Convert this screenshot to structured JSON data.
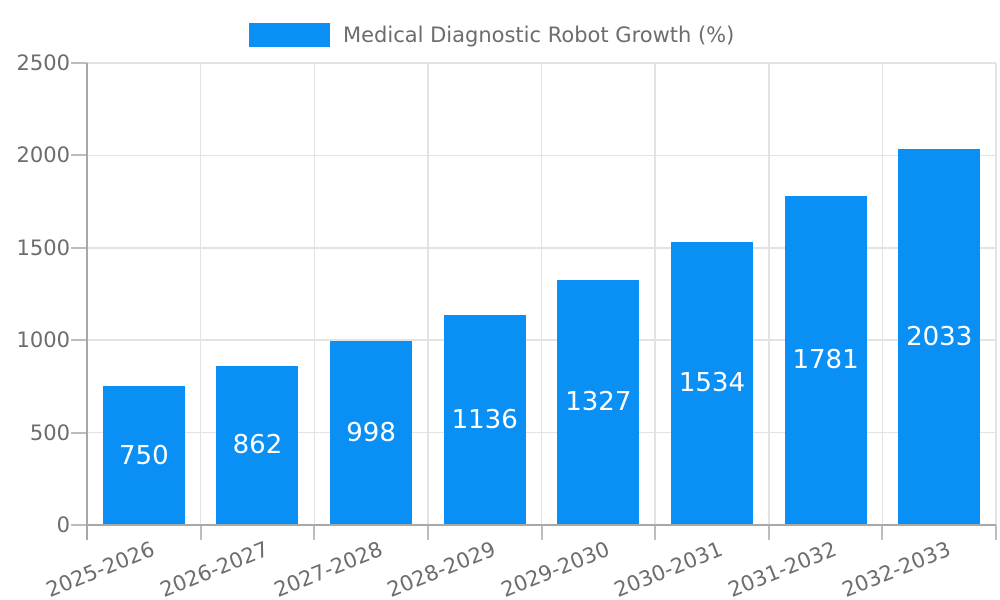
{
  "chart_data": {
    "type": "bar",
    "title": "Medical Diagnostic Robot Growth (%)",
    "legend": {
      "position": "top",
      "label": "Medical Diagnostic Robot Growth (%)"
    },
    "categories": [
      "2025-2026",
      "2026-2027",
      "2027-2028",
      "2028-2029",
      "2029-2030",
      "2030-2031",
      "2031-2032",
      "2032-2033"
    ],
    "values": [
      750,
      862,
      998,
      1136,
      1327,
      1534,
      1781,
      2033
    ],
    "xlabel": "",
    "ylabel": "",
    "ylim": [
      0,
      2500
    ],
    "y_ticks": [
      0,
      500,
      1000,
      1500,
      2000,
      2500
    ],
    "grid": true,
    "bar_value_labels": "inside-center",
    "x_tick_rotation_deg": -22
  },
  "colors": {
    "bar": "#0A90F5",
    "value_label": "#FFFFFF",
    "axis_text": "#6D6D6D",
    "grid_line": "#E3E3E3",
    "tick_line": "#BDBDBD",
    "spine": "#A8A8A8",
    "background": "#FFFFFF"
  }
}
